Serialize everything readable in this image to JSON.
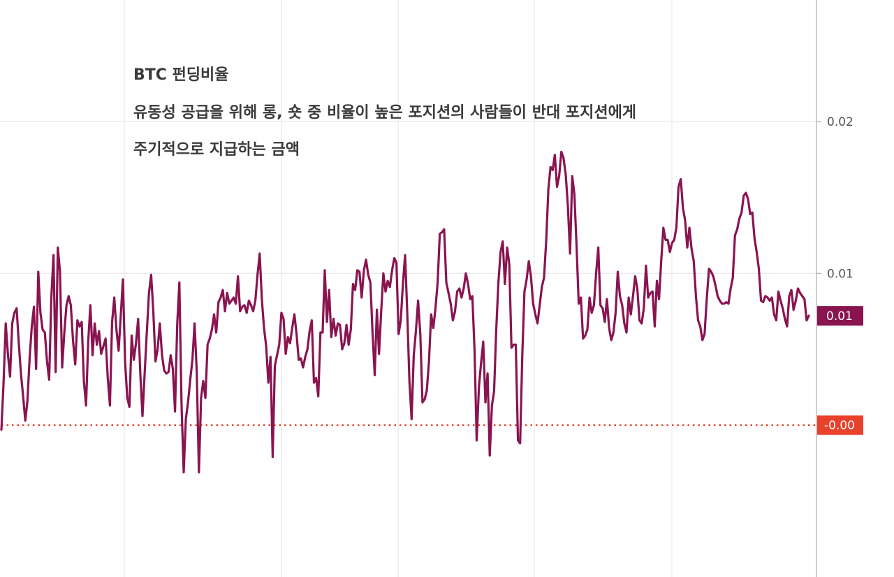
{
  "chart_data": {
    "type": "line",
    "title": "",
    "xlabel": "",
    "ylabel": "",
    "annotations": [
      "BTC 펀딩비율",
      "유동성 공급을 위해 롱, 숏 중 비율이 높은 포지션의 사람들이 반대 포지션에게",
      "주기적으로 지급하는 금액"
    ],
    "ylim": [
      -0.01,
      0.028
    ],
    "yticks": [
      {
        "value": 0.02,
        "label": "0.02"
      },
      {
        "value": 0.01,
        "label": "0.01"
      }
    ],
    "grid": true,
    "x_gridline_count": 5,
    "reference_line": {
      "value": 0.0,
      "label": "-0.00",
      "color": "#e8412c",
      "style": "dotted"
    },
    "last_value_label": {
      "value": 0.0072,
      "label": "0.01",
      "color": "#8a1450"
    },
    "series": [
      {
        "color": "#8a1450",
        "values": [
          -0.0003,
          0.0028,
          0.0067,
          0.0047,
          0.0032,
          0.0067,
          0.0074,
          0.0077,
          0.0054,
          0.0034,
          0.0019,
          0.0003,
          0.0016,
          0.0044,
          0.0065,
          0.0078,
          0.0037,
          0.0101,
          0.0074,
          0.0063,
          0.0061,
          0.0042,
          0.003,
          0.0084,
          0.0112,
          0.0035,
          0.0117,
          0.0101,
          0.0038,
          0.0061,
          0.0079,
          0.0085,
          0.0079,
          0.0056,
          0.004,
          0.0069,
          0.0065,
          0.0068,
          0.0029,
          0.0013,
          0.0055,
          0.0079,
          0.0046,
          0.0067,
          0.0053,
          0.0062,
          0.0047,
          0.0052,
          0.0057,
          0.0031,
          0.0013,
          0.0068,
          0.0084,
          0.0063,
          0.0049,
          0.0072,
          0.0096,
          0.0042,
          0.0018,
          0.0012,
          0.0059,
          0.0043,
          0.0054,
          0.007,
          0.0034,
          0.0006,
          0.0034,
          0.0061,
          0.0087,
          0.0099,
          0.0075,
          0.0042,
          0.005,
          0.0067,
          0.0046,
          0.0036,
          0.0034,
          0.0035,
          0.0046,
          0.0037,
          0.0009,
          0.0066,
          0.0094,
          0.0014,
          -0.0031,
          0.0004,
          0.0015,
          0.003,
          0.0043,
          0.0067,
          0.0035,
          -0.0031,
          0.0018,
          0.0029,
          0.0018,
          0.0053,
          0.0057,
          0.0063,
          0.0073,
          0.0061,
          0.0081,
          0.0084,
          0.0089,
          0.0075,
          0.0087,
          0.008,
          0.0082,
          0.0084,
          0.008,
          0.0098,
          0.0075,
          0.0078,
          0.0079,
          0.0074,
          0.0082,
          0.0079,
          0.0075,
          0.0082,
          0.0099,
          0.0113,
          0.0083,
          0.0064,
          0.0052,
          0.0028,
          0.0045,
          -0.0021,
          0.0039,
          0.0046,
          0.0053,
          0.0074,
          0.007,
          0.0047,
          0.0058,
          0.0054,
          0.0064,
          0.0073,
          0.006,
          0.0043,
          0.0044,
          0.0038,
          0.0045,
          0.005,
          0.0062,
          0.0069,
          0.0028,
          0.0031,
          0.0019,
          0.0061,
          0.0061,
          0.0102,
          0.0068,
          0.0089,
          0.0058,
          0.007,
          0.0059,
          0.0067,
          0.0066,
          0.005,
          0.0054,
          0.0066,
          0.0053,
          0.0063,
          0.0093,
          0.0089,
          0.0102,
          0.0101,
          0.0084,
          0.0102,
          0.0109,
          0.0099,
          0.0094,
          0.0061,
          0.0033,
          0.0076,
          0.0047,
          0.0075,
          0.01,
          0.0088,
          0.0095,
          0.0091,
          0.0102,
          0.011,
          0.0107,
          0.006,
          0.0069,
          0.0093,
          0.0112,
          0.0074,
          0.0029,
          0.0004,
          0.0046,
          0.0062,
          0.0082,
          0.006,
          0.0015,
          0.0017,
          0.0023,
          0.0042,
          0.0073,
          0.0064,
          0.0077,
          0.0094,
          0.0126,
          0.0127,
          0.0129,
          0.0094,
          0.0087,
          0.008,
          0.0069,
          0.0075,
          0.0088,
          0.009,
          0.0084,
          0.009,
          0.01,
          0.0093,
          0.0083,
          0.0085,
          0.005,
          -0.001,
          0.0025,
          0.0041,
          0.0055,
          0.0015,
          0.0034,
          -0.002,
          0.0013,
          0.0022,
          0.0063,
          0.0094,
          0.0114,
          0.0121,
          0.0093,
          0.0117,
          0.0106,
          0.0051,
          0.0053,
          0.0053,
          -0.001,
          -0.0012,
          0.0046,
          0.0088,
          0.0096,
          0.0108,
          0.0098,
          0.008,
          0.0073,
          0.0067,
          0.0079,
          0.0091,
          0.0097,
          0.0121,
          0.0155,
          0.017,
          0.0168,
          0.0178,
          0.0157,
          0.0164,
          0.018,
          0.0176,
          0.0165,
          0.0144,
          0.0113,
          0.0164,
          0.0152,
          0.0118,
          0.008,
          0.0084,
          0.0057,
          0.0059,
          0.0063,
          0.0084,
          0.0074,
          0.0079,
          0.01,
          0.0117,
          0.0079,
          0.0077,
          0.0068,
          0.0083,
          0.0064,
          0.0056,
          0.0061,
          0.0074,
          0.0101,
          0.0085,
          0.0079,
          0.0067,
          0.0061,
          0.0084,
          0.0073,
          0.0085,
          0.0098,
          0.009,
          0.0069,
          0.0067,
          0.0077,
          0.0105,
          0.0084,
          0.0087,
          0.0088,
          0.0065,
          0.0095,
          0.0083,
          0.0108,
          0.013,
          0.0122,
          0.0122,
          0.0114,
          0.012,
          0.0122,
          0.013,
          0.0157,
          0.0162,
          0.0143,
          0.0135,
          0.0117,
          0.013,
          0.0116,
          0.0108,
          0.0085,
          0.0069,
          0.0065,
          0.0056,
          0.006,
          0.0083,
          0.0103,
          0.0101,
          0.0098,
          0.0092,
          0.0085,
          0.0082,
          0.008,
          0.008,
          0.0081,
          0.008,
          0.009,
          0.0097,
          0.0125,
          0.0129,
          0.0136,
          0.014,
          0.0151,
          0.0153,
          0.0149,
          0.0139,
          0.014,
          0.0123,
          0.0114,
          0.0103,
          0.0082,
          0.0081,
          0.0085,
          0.0084,
          0.0082,
          0.0084,
          0.0073,
          0.0069,
          0.0088,
          0.0082,
          0.0077,
          0.007,
          0.0065,
          0.0085,
          0.0089,
          0.0076,
          0.0082,
          0.009,
          0.0087,
          0.0085,
          0.0083,
          0.0069,
          0.0072
        ]
      }
    ]
  }
}
